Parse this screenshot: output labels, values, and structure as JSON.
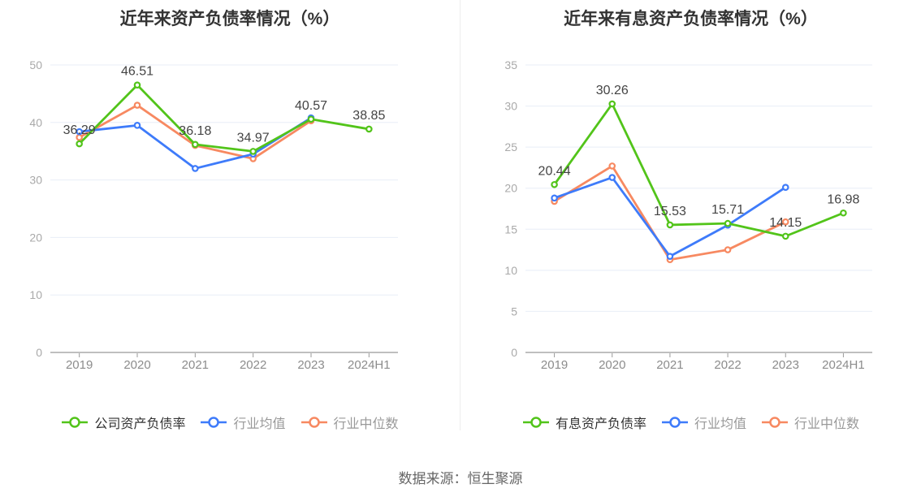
{
  "page": {
    "source_note": "数据来源：恒生聚源"
  },
  "colors": {
    "grid": "#e8eef7",
    "axis": "#7f7f7f",
    "tick_mark": "#999999",
    "y_tick_label": "#a9a9a9",
    "x_tick_label": "#8c8c8c",
    "data_label": "#444444",
    "title": "#333333",
    "company_green": "#52c41a",
    "industry_mean_blue": "#3e7bfa",
    "industry_median_orange": "#f78961"
  },
  "chart_data": [
    {
      "type": "line",
      "title": "近年来资产负债率情况（%）",
      "categories": [
        "2019",
        "2020",
        "2021",
        "2022",
        "2023",
        "2024H1"
      ],
      "ylim": [
        0,
        50
      ],
      "yticks": [
        0,
        10,
        20,
        30,
        40,
        50
      ],
      "grid": true,
      "legend_position": "bottom",
      "series": [
        {
          "name": "公司资产负债率",
          "color": "#52c41a",
          "values": [
            36.29,
            46.51,
            36.18,
            34.97,
            40.57,
            38.85
          ],
          "point_labels": [
            "36.29",
            "46.51",
            "36.18",
            "34.97",
            "40.57",
            "38.85"
          ]
        },
        {
          "name": "行业均值",
          "color": "#3e7bfa",
          "values": [
            38.4,
            39.5,
            32.0,
            34.5,
            40.8,
            null
          ],
          "point_labels": null
        },
        {
          "name": "行业中位数",
          "color": "#f78961",
          "values": [
            37.4,
            43.0,
            36.0,
            33.7,
            40.3,
            null
          ],
          "point_labels": null
        }
      ]
    },
    {
      "type": "line",
      "title": "近年来有息资产负债率情况（%）",
      "categories": [
        "2019",
        "2020",
        "2021",
        "2022",
        "2023",
        "2024H1"
      ],
      "ylim": [
        0,
        35
      ],
      "yticks": [
        0,
        5,
        10,
        15,
        20,
        25,
        30,
        35
      ],
      "grid": true,
      "legend_position": "bottom",
      "series": [
        {
          "name": "有息资产负债率",
          "color": "#52c41a",
          "values": [
            20.44,
            30.26,
            15.53,
            15.71,
            14.15,
            16.98
          ],
          "point_labels": [
            "20.44",
            "30.26",
            "15.53",
            "15.71",
            "14.15",
            "16.98"
          ]
        },
        {
          "name": "行业均值",
          "color": "#3e7bfa",
          "values": [
            18.8,
            21.3,
            11.7,
            15.5,
            20.1,
            null
          ],
          "point_labels": null
        },
        {
          "name": "行业中位数",
          "color": "#f78961",
          "values": [
            18.4,
            22.7,
            11.3,
            12.5,
            15.9,
            null
          ],
          "point_labels": null
        }
      ]
    }
  ]
}
